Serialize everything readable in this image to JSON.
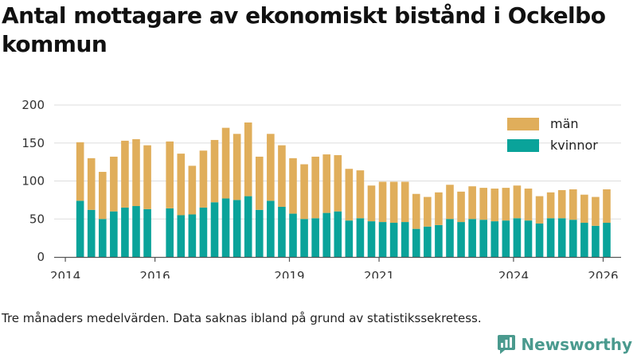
{
  "title": "Antal mottagare av ekonomiskt bistånd i Ockelbo kommun",
  "footnote": "Tre månaders medelvärden. Data saknas ibland på grund av statistikssekretess.",
  "brand": {
    "name": "Newsworthy"
  },
  "colors": {
    "kvinnor": "#0aa39a",
    "man": "#e0ae5b",
    "axis": "#555555",
    "grid": "#dddddd"
  },
  "chart_data": {
    "type": "bar",
    "stacked": true,
    "title": "Antal mottagare av ekonomiskt bistånd i Ockelbo kommun",
    "xlabel": "",
    "ylabel": "",
    "ylim": [
      0,
      200
    ],
    "yticks": [
      0,
      50,
      100,
      150,
      200
    ],
    "xlim": [
      2013.75,
      2026.4
    ],
    "xticks": [
      {
        "value": 2014.0,
        "label": "2014"
      },
      {
        "value": 2016.0,
        "label": "2016"
      },
      {
        "value": 2019.0,
        "label": "2019"
      },
      {
        "value": 2021.0,
        "label": "2021"
      },
      {
        "value": 2024.0,
        "label": "2024"
      },
      {
        "value": 2026.0,
        "label": "2026"
      }
    ],
    "legend": {
      "position": "top-right",
      "entries": [
        "män",
        "kvinnor"
      ]
    },
    "x": [
      2014.33,
      2014.58,
      2014.83,
      2015.08,
      2015.33,
      2015.58,
      2015.83,
      2016.33,
      2016.58,
      2016.83,
      2017.08,
      2017.33,
      2017.58,
      2017.83,
      2018.08,
      2018.33,
      2018.58,
      2018.83,
      2019.08,
      2019.33,
      2019.58,
      2019.83,
      2020.08,
      2020.33,
      2020.58,
      2020.83,
      2021.08,
      2021.33,
      2021.58,
      2021.83,
      2022.08,
      2022.33,
      2022.58,
      2022.83,
      2023.08,
      2023.33,
      2023.58,
      2023.83,
      2024.08,
      2024.33,
      2024.58,
      2024.83,
      2025.08,
      2025.33,
      2025.58,
      2025.83,
      2026.08
    ],
    "series": [
      {
        "name": "kvinnor",
        "values": [
          74,
          62,
          50,
          60,
          65,
          67,
          63,
          64,
          55,
          56,
          65,
          72,
          77,
          75,
          80,
          62,
          74,
          66,
          57,
          50,
          51,
          58,
          60,
          48,
          51,
          47,
          46,
          45,
          46,
          37,
          40,
          42,
          50,
          46,
          50,
          49,
          47,
          48,
          51,
          48,
          44,
          51,
          51,
          49,
          45,
          41,
          45
        ]
      },
      {
        "name": "män",
        "values": [
          77,
          68,
          62,
          72,
          88,
          88,
          84,
          88,
          81,
          64,
          75,
          82,
          93,
          87,
          97,
          70,
          88,
          81,
          73,
          72,
          81,
          77,
          74,
          68,
          63,
          47,
          53,
          54,
          53,
          46,
          39,
          43,
          45,
          40,
          43,
          42,
          43,
          43,
          43,
          42,
          36,
          34,
          37,
          40,
          37,
          38,
          44
        ]
      }
    ]
  }
}
